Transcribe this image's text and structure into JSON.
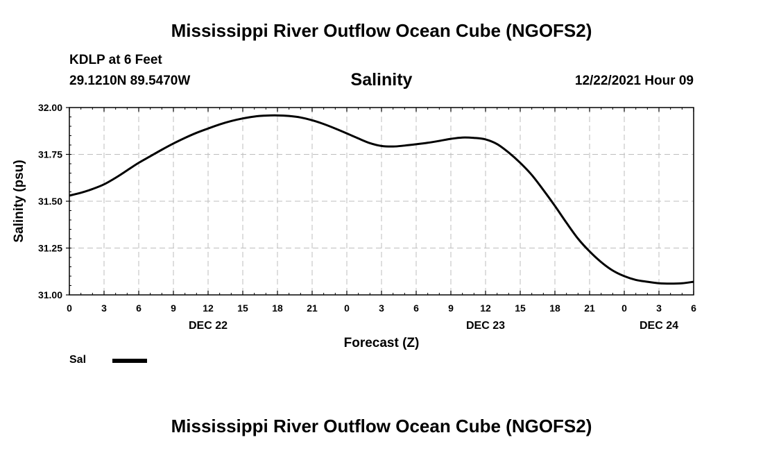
{
  "header": {
    "title": "Mississippi River Outflow Ocean Cube (NGOFS2)",
    "station": "KDLP at 6 Feet",
    "coords": "29.1210N  89.5470W",
    "timestamp": "12/22/2021 Hour 09",
    "footer_title": "Mississippi River Outflow Ocean Cube (NGOFS2)"
  },
  "chart_data": {
    "type": "line",
    "title": "Salinity",
    "xlabel": "Forecast (Z)",
    "ylabel": "Salinity (psu)",
    "xlim": [
      0,
      54
    ],
    "ylim": [
      31.0,
      32.0
    ],
    "yticks": [
      "31.00",
      "31.25",
      "31.50",
      "31.75",
      "32.00"
    ],
    "xtick_labels": [
      "0",
      "3",
      "6",
      "9",
      "12",
      "15",
      "18",
      "21",
      "0",
      "3",
      "6",
      "9",
      "12",
      "15",
      "18",
      "21",
      "0",
      "3",
      "6"
    ],
    "day_labels": [
      {
        "label": "DEC 22",
        "x": 12
      },
      {
        "label": "DEC 23",
        "x": 36
      },
      {
        "label": "DEC 24",
        "x": 51
      }
    ],
    "grid": true,
    "legend_position": "bottom-left",
    "series": [
      {
        "name": "Sal",
        "color": "#000000",
        "x": [
          0,
          1,
          2,
          3,
          4,
          5,
          6,
          7,
          8,
          9,
          10,
          11,
          12,
          13,
          14,
          15,
          16,
          17,
          18,
          19,
          20,
          21,
          22,
          23,
          24,
          25,
          26,
          27,
          28,
          29,
          30,
          31,
          32,
          33,
          34,
          35,
          36,
          37,
          38,
          39,
          40,
          41,
          42,
          43,
          44,
          45,
          46,
          47,
          48,
          49,
          50,
          51,
          52,
          53,
          54
        ],
        "y": [
          31.53,
          31.545,
          31.565,
          31.59,
          31.625,
          31.665,
          31.705,
          31.74,
          31.775,
          31.808,
          31.838,
          31.865,
          31.888,
          31.91,
          31.928,
          31.942,
          31.952,
          31.957,
          31.958,
          31.955,
          31.947,
          31.932,
          31.912,
          31.888,
          31.862,
          31.835,
          31.81,
          31.795,
          31.792,
          31.797,
          31.804,
          31.812,
          31.822,
          31.833,
          31.84,
          31.838,
          31.83,
          31.805,
          31.76,
          31.705,
          31.64,
          31.56,
          31.475,
          31.385,
          31.3,
          31.232,
          31.175,
          31.13,
          31.1,
          31.08,
          31.07,
          31.062,
          31.06,
          31.062,
          31.07
        ]
      }
    ]
  }
}
